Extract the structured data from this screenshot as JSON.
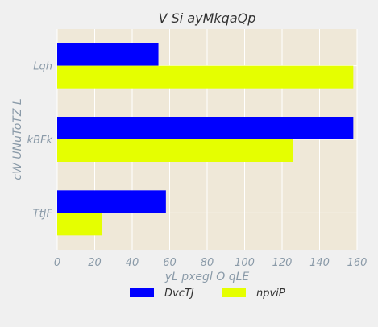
{
  "chart_data": {
    "type": "bar",
    "orientation": "horizontal",
    "title": "V Si ayMkqaQp",
    "xlabel": "yL pxegl O qLE",
    "ylabel": "cW UNuToTZ L",
    "categories": [
      "Lqh",
      "kBFk",
      "TtJF"
    ],
    "series": [
      {
        "name": "DvcTJ",
        "color": "#0000ff",
        "values": [
          54,
          158,
          58
        ]
      },
      {
        "name": "npviP",
        "color": "#e5ff00",
        "values": [
          158,
          126,
          24
        ]
      }
    ],
    "xlim": [
      0,
      160
    ],
    "xticks": [
      "0",
      "20",
      "40",
      "60",
      "80",
      "100",
      "120",
      "140",
      "160"
    ],
    "grid": true,
    "legend_position": "bottom-center",
    "colors": {
      "plot_bg": "#efe8d8",
      "page_bg": "#f0f0f0",
      "grid": "#ffffff"
    }
  }
}
